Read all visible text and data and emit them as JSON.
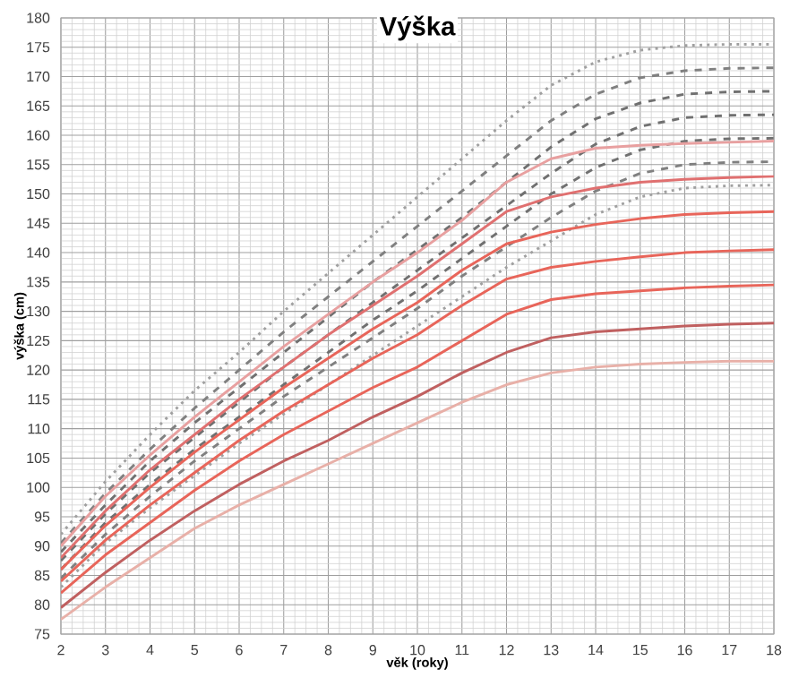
{
  "chart_data": {
    "type": "line",
    "title": "Výška",
    "xlabel": "věk (roky)",
    "ylabel": "výška (cm)",
    "x": [
      2,
      3,
      4,
      5,
      6,
      7,
      8,
      9,
      10,
      11,
      12,
      13,
      14,
      15,
      16,
      17,
      18
    ],
    "xlim": [
      2,
      18
    ],
    "xticks": [
      2,
      3,
      4,
      5,
      6,
      7,
      8,
      9,
      10,
      11,
      12,
      13,
      14,
      15,
      16,
      17,
      18
    ],
    "ylim": [
      75,
      180
    ],
    "yticks": [
      75,
      80,
      85,
      90,
      95,
      100,
      105,
      110,
      115,
      120,
      125,
      130,
      135,
      140,
      145,
      150,
      155,
      160,
      165,
      170,
      175,
      180
    ],
    "grid": true,
    "marker": "none",
    "line_style": "solid",
    "series": [
      {
        "color": "#a0a0a0",
        "line_style": "dotted",
        "values": [
          92,
          101,
          109,
          116.5,
          123,
          130,
          136.5,
          143,
          149.5,
          156,
          162.5,
          168.5,
          172.5,
          174.5,
          175.3,
          175.5,
          175.5
        ]
      },
      {
        "color": "#808080",
        "line_style": "dashed",
        "values": [
          90.5,
          99,
          106.5,
          113.5,
          120,
          126.5,
          132.5,
          138.5,
          144.5,
          150.5,
          156.5,
          162.5,
          167,
          169.8,
          171,
          171.4,
          171.5
        ]
      },
      {
        "color": "#707070",
        "line_style": "dashed",
        "values": [
          89,
          97,
          104.5,
          111,
          117,
          123,
          129,
          135,
          140.5,
          146,
          152,
          158,
          162.8,
          165.5,
          167,
          167.4,
          167.5
        ]
      },
      {
        "color": "#707070",
        "line_style": "dashed",
        "values": [
          87.5,
          95.5,
          102.5,
          108.5,
          114.5,
          120.5,
          126,
          131.5,
          137,
          142.5,
          148,
          153.5,
          158.5,
          161.5,
          163,
          163.4,
          163.5
        ]
      },
      {
        "color": "#707070",
        "line_style": "dashed",
        "values": [
          86,
          94,
          100.5,
          106.5,
          112,
          117.5,
          123,
          128.5,
          133.5,
          139,
          144.5,
          150,
          154.5,
          157.5,
          159,
          159.4,
          159.5
        ]
      },
      {
        "color": "#808080",
        "line_style": "dashed",
        "values": [
          84.5,
          92,
          98.5,
          104.5,
          110,
          115.5,
          120.5,
          125.5,
          130.5,
          136,
          141,
          146,
          150.5,
          153.5,
          155,
          155.4,
          155.5
        ]
      },
      {
        "color": "#a0a0a0",
        "line_style": "dotted",
        "values": [
          83,
          90.5,
          96.5,
          102,
          107.5,
          112.5,
          117.5,
          122.5,
          127.5,
          132.5,
          137.5,
          142,
          146.5,
          149.5,
          151,
          151.4,
          151.5
        ]
      },
      {
        "color": "#e8a0a0",
        "values": [
          90,
          98.5,
          105.5,
          112,
          118,
          124,
          129.5,
          135,
          140,
          145.5,
          152,
          156,
          157.8,
          158.3,
          158.6,
          158.8,
          159
        ]
      },
      {
        "color": "#e07070",
        "values": [
          88,
          96,
          103,
          109,
          115,
          120.5,
          126,
          131,
          136,
          141.5,
          147,
          149.5,
          151,
          152,
          152.5,
          152.8,
          153
        ]
      },
      {
        "color": "#e8655a",
        "values": [
          86,
          93.5,
          100,
          106,
          111.5,
          117,
          122,
          127,
          131.5,
          137,
          141.5,
          143.5,
          144.8,
          145.8,
          146.5,
          146.8,
          147
        ]
      },
      {
        "color": "#e8655a",
        "values": [
          84,
          91,
          97,
          102.5,
          108,
          113,
          117.5,
          122,
          126,
          131,
          135.5,
          137.5,
          138.5,
          139.3,
          140,
          140.3,
          140.5
        ]
      },
      {
        "color": "#e8655a",
        "values": [
          82,
          88.5,
          94,
          99.5,
          104.5,
          109,
          113,
          117,
          120.5,
          125,
          129.5,
          132,
          133,
          133.5,
          134,
          134.3,
          134.5
        ]
      },
      {
        "color": "#c06060",
        "values": [
          79.5,
          85.5,
          91,
          96,
          100.5,
          104.5,
          108,
          112,
          115.5,
          119.5,
          123,
          125.5,
          126.5,
          127,
          127.5,
          127.8,
          128
        ]
      },
      {
        "color": "#e8b0a8",
        "values": [
          77.5,
          83,
          88,
          93,
          97,
          100.5,
          104,
          107.5,
          111,
          114.5,
          117.5,
          119.5,
          120.5,
          121,
          121.3,
          121.5,
          121.5
        ]
      }
    ]
  }
}
